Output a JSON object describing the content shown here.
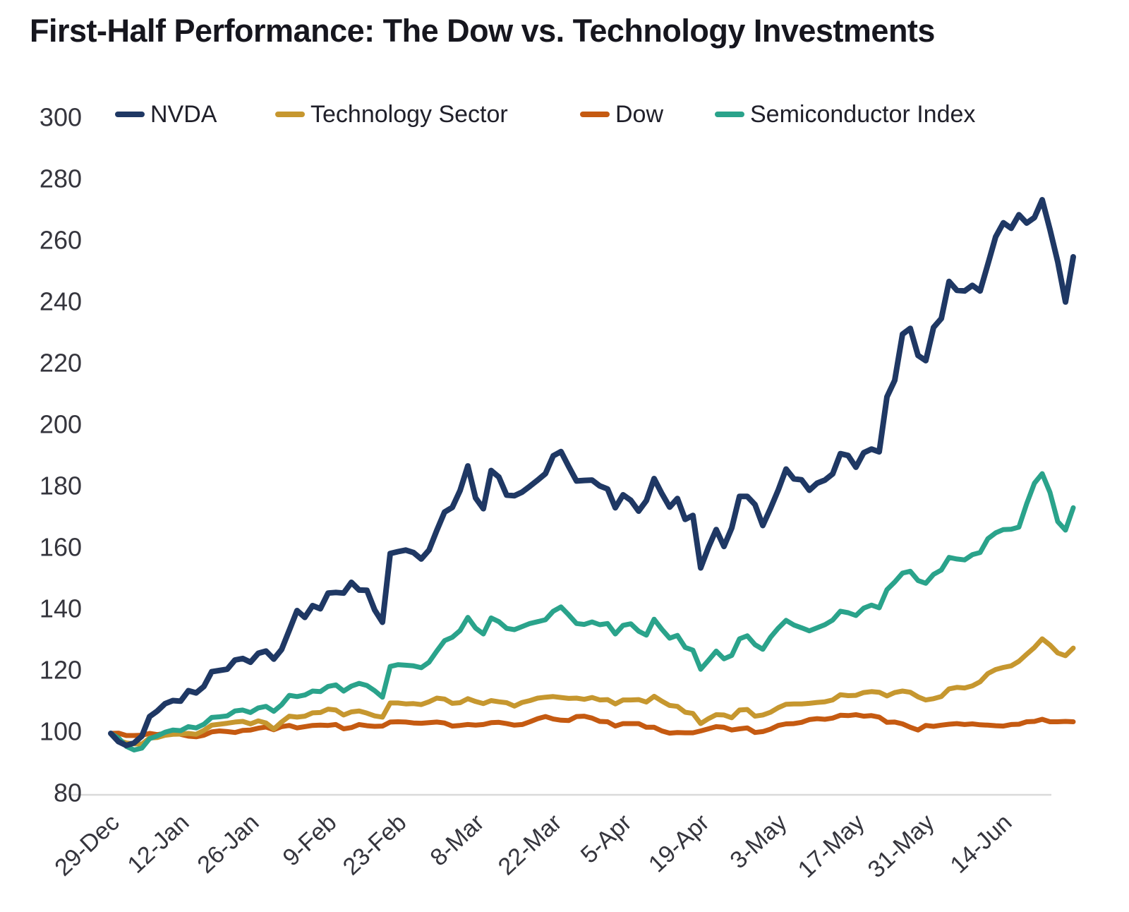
{
  "title": "First-Half Performance: The Dow vs. Technology Investments",
  "chart_data": {
    "type": "line",
    "title": "First-Half Performance: The Dow vs. Technology Investments",
    "xlabel": "",
    "ylabel": "",
    "ylim": [
      80,
      300
    ],
    "y_ticks": [
      300,
      280,
      260,
      240,
      220,
      200,
      180,
      160,
      140,
      120,
      100,
      80
    ],
    "grid": "off (single light baseline gridline at 80)",
    "legend_position": "top-left-inline",
    "x_tick_labels": [
      "29-Dec",
      "12-Jan",
      "26-Jan",
      "9-Feb",
      "23-Feb",
      "8-Mar",
      "22-Mar",
      "5-Apr",
      "19-Apr",
      "3-May",
      "17-May",
      "31-May",
      "14-Jun"
    ],
    "x_tick_indices": [
      0,
      9,
      18,
      28,
      37,
      47,
      57,
      66,
      76,
      86,
      96,
      105,
      115
    ],
    "baseline_value": 100,
    "series": [
      {
        "name": "NVDA",
        "color": "#1F3864",
        "values": [
          100.0,
          97.3,
          96.1,
          96.9,
          99.1,
          105.5,
          107.3,
          109.7,
          110.7,
          110.5,
          113.9,
          113.2,
          115.3,
          120.1,
          120.5,
          120.9,
          123.9,
          124.4,
          123.2,
          126.1,
          126.8,
          124.2,
          127.3,
          133.6,
          140.0,
          137.8,
          141.6,
          140.6,
          145.7,
          145.9,
          145.7,
          149.2,
          146.7,
          146.6,
          140.2,
          136.2,
          158.6,
          159.2,
          159.7,
          158.9,
          156.8,
          159.7,
          166.1,
          172.1,
          173.6,
          179.1,
          187.1,
          176.7,
          173.2,
          185.6,
          183.5,
          177.6,
          177.4,
          178.6,
          180.5,
          182.5,
          184.6,
          190.4,
          191.8,
          186.9,
          182.2,
          182.4,
          182.5,
          180.6,
          179.6,
          173.5,
          177.7,
          175.9,
          172.4,
          175.8,
          183.0,
          178.1,
          173.7,
          176.5,
          169.7,
          171.0,
          153.9,
          160.6,
          166.4,
          160.9,
          166.9,
          177.2,
          177.2,
          174.5,
          167.7,
          173.3,
          179.3,
          186.1,
          182.9,
          182.6,
          179.2,
          181.5,
          182.5,
          184.5,
          191.1,
          190.5,
          186.7,
          191.4,
          192.6,
          191.7,
          209.6,
          215.0,
          230.0,
          231.9,
          223.1,
          221.4,
          232.2,
          235.1,
          247.2,
          244.3,
          244.1,
          245.9,
          244.1,
          252.8,
          261.7,
          266.3,
          264.5,
          268.9,
          266.2,
          268.0,
          273.8,
          264.1,
          253.6,
          240.5,
          255.2
        ]
      },
      {
        "name": "Technology Sector",
        "color": "#C6972F",
        "values": [
          100.0,
          97.7,
          96.9,
          96.6,
          96.5,
          98.5,
          98.7,
          99.4,
          99.7,
          99.8,
          100.0,
          99.7,
          101.0,
          102.7,
          103.0,
          103.3,
          103.7,
          103.9,
          103.1,
          104.1,
          103.4,
          101.4,
          103.7,
          105.6,
          105.3,
          105.6,
          106.7,
          106.8,
          107.9,
          107.6,
          106.0,
          107.0,
          107.3,
          106.6,
          105.7,
          105.3,
          109.9,
          109.9,
          109.6,
          109.7,
          109.4,
          110.3,
          111.5,
          111.2,
          109.8,
          110.0,
          111.3,
          110.4,
          109.7,
          110.7,
          110.3,
          110.0,
          108.9,
          110.1,
          110.7,
          111.5,
          111.8,
          112.0,
          111.7,
          111.4,
          111.5,
          111.1,
          111.7,
          110.9,
          111.0,
          109.6,
          110.9,
          110.9,
          111.0,
          110.2,
          112.1,
          110.5,
          109.1,
          108.8,
          106.9,
          106.5,
          103.2,
          104.8,
          106.1,
          106.0,
          105.1,
          107.6,
          107.8,
          105.6,
          106.0,
          106.9,
          108.4,
          109.5,
          109.6,
          109.6,
          109.8,
          110.1,
          110.3,
          110.9,
          112.6,
          112.3,
          112.4,
          113.3,
          113.6,
          113.4,
          112.2,
          113.3,
          113.8,
          113.4,
          111.9,
          110.9,
          111.3,
          112.0,
          114.5,
          115.0,
          114.8,
          115.5,
          116.8,
          119.5,
          120.8,
          121.5,
          122.0,
          123.5,
          125.8,
          128.0,
          130.8,
          128.8,
          126.2,
          125.3,
          127.8
        ]
      },
      {
        "name": "Dow",
        "color": "#C55A11",
        "values": [
          100.0,
          100.1,
          99.3,
          99.3,
          99.4,
          100.0,
          99.6,
          100.0,
          100.1,
          99.7,
          99.1,
          98.9,
          99.4,
          100.5,
          100.8,
          100.6,
          100.3,
          101.0,
          101.1,
          101.7,
          102.1,
          101.2,
          102.2,
          102.6,
          101.8,
          102.2,
          102.6,
          102.7,
          102.6,
          102.9,
          101.5,
          101.9,
          102.9,
          102.5,
          102.3,
          102.4,
          103.7,
          103.8,
          103.7,
          103.4,
          103.3,
          103.5,
          103.7,
          103.4,
          102.4,
          102.6,
          102.9,
          102.7,
          102.9,
          103.5,
          103.6,
          103.2,
          102.7,
          102.9,
          103.8,
          104.8,
          105.5,
          104.7,
          104.3,
          104.2,
          105.5,
          105.6,
          105.0,
          103.9,
          103.8,
          102.4,
          103.2,
          103.2,
          103.2,
          102.0,
          102.0,
          100.8,
          100.1,
          100.3,
          100.2,
          100.2,
          100.8,
          101.5,
          102.2,
          102.0,
          101.1,
          101.5,
          101.8,
          100.3,
          100.6,
          101.4,
          102.6,
          103.1,
          103.2,
          103.6,
          104.5,
          104.8,
          104.6,
          105.0,
          105.9,
          105.8,
          106.1,
          105.6,
          105.8,
          105.3,
          103.6,
          103.7,
          103.1,
          102.0,
          101.1,
          102.6,
          102.3,
          102.7,
          103.0,
          103.2,
          102.9,
          103.1,
          102.8,
          102.7,
          102.5,
          102.4,
          102.9,
          103.0,
          103.8,
          103.9,
          104.6,
          103.8,
          103.8,
          103.9,
          103.8
        ]
      },
      {
        "name": "Semiconductor Index",
        "color": "#2AA38B",
        "values": [
          100.0,
          98.5,
          95.8,
          94.6,
          95.2,
          98.3,
          99.2,
          100.4,
          101.1,
          100.9,
          102.2,
          101.8,
          103.0,
          105.2,
          105.4,
          105.7,
          107.3,
          107.6,
          106.8,
          108.3,
          108.8,
          107.2,
          109.3,
          112.4,
          112.0,
          112.5,
          113.8,
          113.6,
          115.3,
          115.8,
          113.8,
          115.4,
          116.3,
          115.6,
          113.9,
          111.8,
          121.8,
          122.4,
          122.2,
          122.0,
          121.4,
          123.2,
          126.8,
          130.2,
          131.3,
          133.5,
          137.8,
          134.3,
          132.4,
          137.6,
          136.4,
          134.2,
          133.8,
          134.8,
          135.8,
          136.4,
          137.0,
          139.8,
          141.2,
          138.6,
          135.8,
          135.5,
          136.3,
          135.4,
          135.8,
          132.4,
          135.2,
          135.7,
          133.3,
          132.0,
          137.2,
          133.9,
          131.0,
          131.9,
          128.0,
          127.1,
          120.9,
          123.8,
          126.8,
          124.3,
          125.4,
          130.8,
          131.8,
          128.9,
          127.4,
          131.3,
          134.3,
          136.8,
          135.3,
          134.4,
          133.4,
          134.4,
          135.4,
          136.9,
          139.8,
          139.3,
          138.4,
          140.8,
          141.8,
          140.9,
          146.8,
          149.3,
          152.2,
          152.8,
          149.8,
          148.9,
          151.8,
          153.2,
          157.3,
          156.8,
          156.5,
          158.2,
          158.9,
          163.4,
          165.3,
          166.4,
          166.5,
          167.2,
          174.8,
          181.5,
          184.6,
          178.5,
          169.0,
          166.2,
          173.5
        ]
      }
    ]
  },
  "legend_items": [
    {
      "label": "NVDA"
    },
    {
      "label": "Technology Sector"
    },
    {
      "label": "Dow"
    },
    {
      "label": "Semiconductor Index"
    }
  ]
}
